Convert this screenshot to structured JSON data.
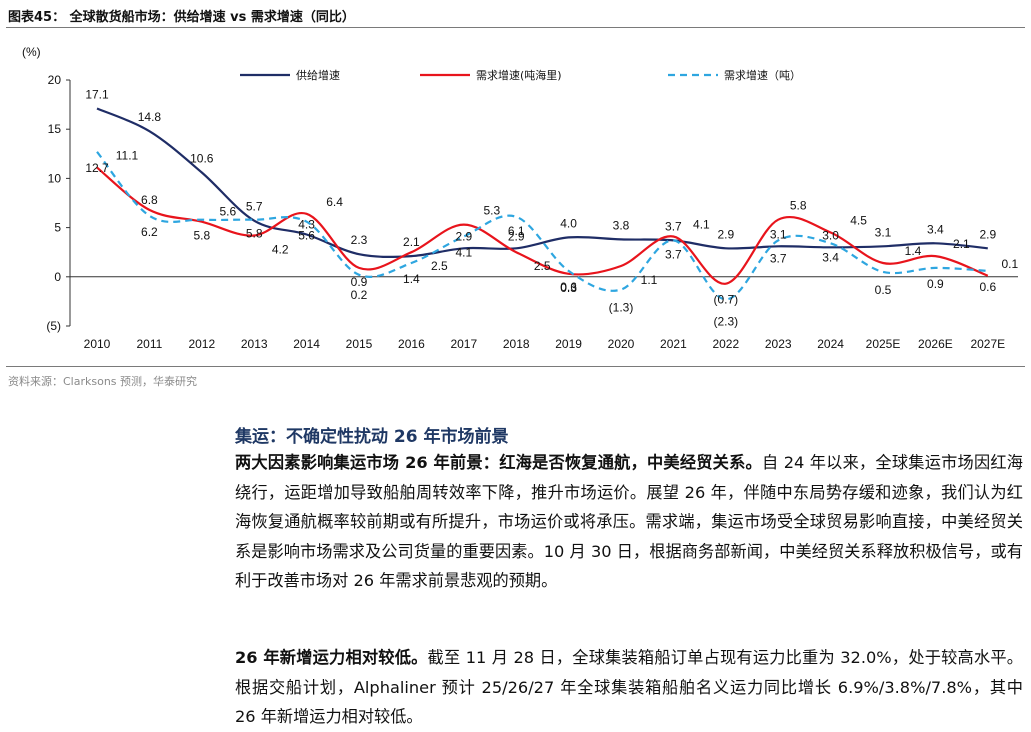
{
  "figure": {
    "title": "图表45：  全球散货船市场：供给增速 vs 需求增速（同比）",
    "source": "资料来源：Clarksons 预测，华泰研究"
  },
  "chart_data": {
    "type": "line",
    "ylabel": "(%)",
    "ylim": [
      -5,
      20
    ],
    "yticks": [
      -5,
      0,
      5,
      10,
      15,
      20
    ],
    "ytick_labels": [
      "(5)",
      "0",
      "5",
      "10",
      "15",
      "20"
    ],
    "categories": [
      "2010",
      "2011",
      "2012",
      "2013",
      "2014",
      "2015",
      "2016",
      "2017",
      "2018",
      "2019",
      "2020",
      "2021",
      "2022",
      "2023",
      "2024",
      "2025E",
      "2026E",
      "2027E"
    ],
    "legend_position": "top",
    "grid": false,
    "series": [
      {
        "name": "供给增速",
        "color": "#1f2d66",
        "dash": "solid",
        "values": [
          17.1,
          14.8,
          10.6,
          5.7,
          4.3,
          2.3,
          2.1,
          2.9,
          2.9,
          4.0,
          3.8,
          3.7,
          2.9,
          3.1,
          3.0,
          3.1,
          3.4,
          2.9
        ],
        "labels": [
          "17.1",
          "14.8",
          "10.6",
          "5.7",
          "4.3",
          "2.3",
          "2.1",
          "2.9",
          "2.9",
          "4.0",
          "3.8",
          "3.7",
          "2.9",
          "3.1",
          "3.0",
          "3.1",
          "3.4",
          "2.9"
        ]
      },
      {
        "name": "需求增速(吨海里)",
        "color": "#e8141c",
        "dash": "solid",
        "values": [
          11.1,
          6.8,
          5.6,
          4.2,
          6.4,
          0.9,
          2.5,
          5.3,
          2.5,
          0.3,
          1.1,
          4.1,
          -0.7,
          5.8,
          4.5,
          1.4,
          2.1,
          0.1
        ],
        "labels": [
          "11.1",
          "6.8",
          "5.6",
          "4.2",
          "6.4",
          "0.9",
          "2.5",
          "5.3",
          "2.5",
          "0.3",
          "1.1",
          "4.1",
          "(0.7)",
          "5.8",
          "4.5",
          "1.4",
          "2.1",
          "0.1"
        ]
      },
      {
        "name": "需求增速（吨）",
        "color": "#2ea6e0",
        "dash": "dashed",
        "values": [
          12.7,
          6.2,
          5.8,
          5.8,
          5.6,
          0.2,
          1.4,
          4.1,
          6.1,
          0.6,
          -1.3,
          3.7,
          -2.3,
          3.7,
          3.4,
          0.5,
          0.9,
          0.6
        ],
        "labels": [
          "12.7",
          "6.2",
          "5.8",
          "5.8",
          "5.6",
          "0.2",
          "1.4",
          "4.1",
          "6.1",
          "0.6",
          "(1.3)",
          "3.7",
          "(2.3)",
          "3.7",
          "3.4",
          "0.5",
          "0.9",
          "0.6"
        ]
      }
    ]
  },
  "article": {
    "section_title": "集运：不确定性扰动 26 年市场前景",
    "p1_lead": "两大因素影响集运市场 26 年前景：红海是否恢复通航，中美经贸关系。",
    "p1_body": "自 24 年以来，全球集运市场因红海绕行，运距增加导致船舶周转效率下降，推升市场运价。展望 26 年，伴随中东局势存缓和迹象，我们认为红海恢复通航概率较前期或有所提升，市场运价或将承压。需求端，集运市场受全球贸易影响直接，中美经贸关系是影响市场需求及公司货量的重要因素。10 月 30 日，根据商务部新闻，中美经贸关系释放积极信号，或有利于改善市场对 26 年需求前景悲观的预期。",
    "p2_lead": "26 年新增运力相对较低。",
    "p2_body": "截至 11 月 28 日，全球集装箱船订单占现有运力比重为 32.0%，处于较高水平。根据交船计划，Alphaliner 预计 25/26/27 年全球集装箱船舶名义运力同比增长 6.9%/3.8%/7.8%，其中 26 年新增运力相对较低。"
  }
}
